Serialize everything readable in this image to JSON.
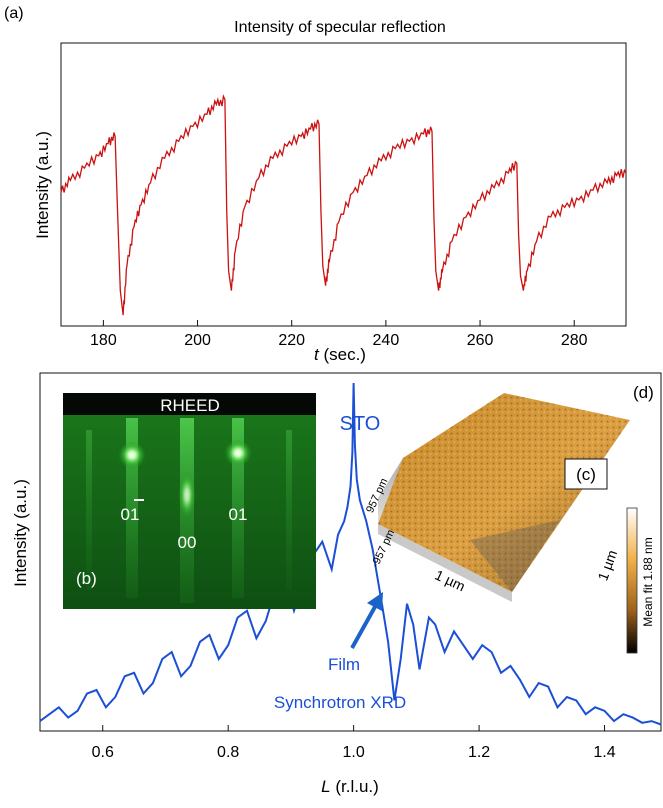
{
  "panel_a": {
    "label": "(a)",
    "title": "Intensity of specular reflection",
    "ylabel": "Intensity (a.u.)",
    "xlabel_var": "t",
    "xlabel_unit": " (sec.)",
    "ticks": [
      "180",
      "200",
      "220",
      "240",
      "260",
      "280"
    ],
    "line_color": "#cc1111"
  },
  "panel_d": {
    "label": "(d)",
    "ylabel": "Intensity (a.u.)",
    "xlabel_var": "L",
    "xlabel_unit": " (r.l.u.)",
    "ticks": [
      "0.6",
      "0.8",
      "1.0",
      "1.2",
      "1.4"
    ],
    "sto_label": "STO",
    "film_label": "Film",
    "xrd_label": "Synchrotron XRD",
    "line_color": "#1a4fd6"
  },
  "inset_b": {
    "label": "(b)",
    "header": "RHEED",
    "spot_left": "01",
    "spot_center": "00",
    "spot_right": "01"
  },
  "inset_c": {
    "label": "(c)",
    "z_top": "957 pm",
    "z_bottom": "-957 pm",
    "x_scale": "1 µm",
    "y_scale": "1 µm",
    "colorbar_label": "Mean fit 1.88 nm"
  },
  "chart_data": [
    {
      "type": "line",
      "title": "Intensity of specular reflection",
      "xlabel": "t (sec.)",
      "ylabel": "Intensity (a.u.)",
      "xlim": [
        171,
        291
      ],
      "ylim": [
        0,
        1
      ],
      "x_ticks": [
        180,
        200,
        220,
        240,
        260,
        280
      ],
      "series": [
        {
          "x": [
            171,
            173,
            176,
            179,
            181,
            182.5,
            183,
            183.6,
            184.2,
            185,
            186.5,
            188,
            190,
            193,
            196,
            199,
            202,
            204,
            205.8,
            206.2,
            206.6,
            207.2,
            208,
            210,
            213,
            216,
            219,
            222,
            224,
            225.8,
            226.2,
            226.6,
            227.2,
            228,
            230,
            233,
            236,
            239,
            242,
            245,
            248,
            249.8,
            250.2,
            250.6,
            251.2,
            252,
            254,
            257,
            260,
            263,
            266,
            267.8,
            268.2,
            268.6,
            269.2,
            270,
            272,
            275,
            278,
            281,
            284,
            287,
            289,
            291
          ],
          "y": [
            0.52,
            0.57,
            0.62,
            0.67,
            0.72,
            0.75,
            0.45,
            0.12,
            0.02,
            0.22,
            0.38,
            0.47,
            0.56,
            0.66,
            0.73,
            0.79,
            0.84,
            0.88,
            0.9,
            0.45,
            0.2,
            0.12,
            0.28,
            0.46,
            0.58,
            0.66,
            0.71,
            0.75,
            0.78,
            0.8,
            0.45,
            0.22,
            0.14,
            0.24,
            0.4,
            0.52,
            0.59,
            0.65,
            0.7,
            0.73,
            0.76,
            0.77,
            0.42,
            0.2,
            0.12,
            0.2,
            0.32,
            0.42,
            0.49,
            0.54,
            0.6,
            0.64,
            0.35,
            0.18,
            0.12,
            0.2,
            0.32,
            0.42,
            0.46,
            0.49,
            0.53,
            0.56,
            0.59,
            0.6
          ]
        }
      ]
    },
    {
      "type": "line",
      "xlabel": "L (r.l.u.)",
      "ylabel": "Intensity (a.u.)",
      "xlim": [
        0.5,
        1.49
      ],
      "ylim": [
        0,
        1
      ],
      "x_ticks": [
        0.6,
        0.8,
        1.0,
        1.2,
        1.4
      ],
      "series": [
        {
          "x": [
            0.5,
            0.515,
            0.53,
            0.545,
            0.56,
            0.575,
            0.59,
            0.605,
            0.62,
            0.635,
            0.65,
            0.665,
            0.68,
            0.695,
            0.71,
            0.725,
            0.74,
            0.755,
            0.77,
            0.785,
            0.8,
            0.815,
            0.83,
            0.845,
            0.86,
            0.875,
            0.89,
            0.905,
            0.92,
            0.935,
            0.95,
            0.965,
            0.975,
            0.985,
            0.99,
            0.995,
            0.998,
            1.0,
            1.002,
            1.005,
            1.01,
            1.02,
            1.03,
            1.045,
            1.055,
            1.065,
            1.075,
            1.085,
            1.095,
            1.105,
            1.12,
            1.13,
            1.145,
            1.16,
            1.175,
            1.19,
            1.205,
            1.22,
            1.235,
            1.25,
            1.265,
            1.28,
            1.295,
            1.31,
            1.325,
            1.34,
            1.355,
            1.37,
            1.385,
            1.4,
            1.415,
            1.43,
            1.445,
            1.46,
            1.475,
            1.49
          ],
          "y": [
            0.02,
            0.04,
            0.06,
            0.03,
            0.05,
            0.1,
            0.11,
            0.06,
            0.09,
            0.15,
            0.16,
            0.1,
            0.13,
            0.2,
            0.22,
            0.15,
            0.18,
            0.25,
            0.27,
            0.2,
            0.24,
            0.32,
            0.34,
            0.26,
            0.31,
            0.4,
            0.44,
            0.34,
            0.42,
            0.5,
            0.54,
            0.46,
            0.56,
            0.6,
            0.64,
            0.7,
            0.8,
            1.0,
            0.82,
            0.72,
            0.66,
            0.6,
            0.52,
            0.36,
            0.25,
            0.08,
            0.2,
            0.36,
            0.3,
            0.17,
            0.32,
            0.3,
            0.22,
            0.28,
            0.24,
            0.2,
            0.24,
            0.22,
            0.16,
            0.18,
            0.14,
            0.09,
            0.13,
            0.12,
            0.06,
            0.09,
            0.08,
            0.04,
            0.06,
            0.05,
            0.02,
            0.04,
            0.03,
            0.015,
            0.02,
            0.01
          ]
        }
      ]
    }
  ]
}
